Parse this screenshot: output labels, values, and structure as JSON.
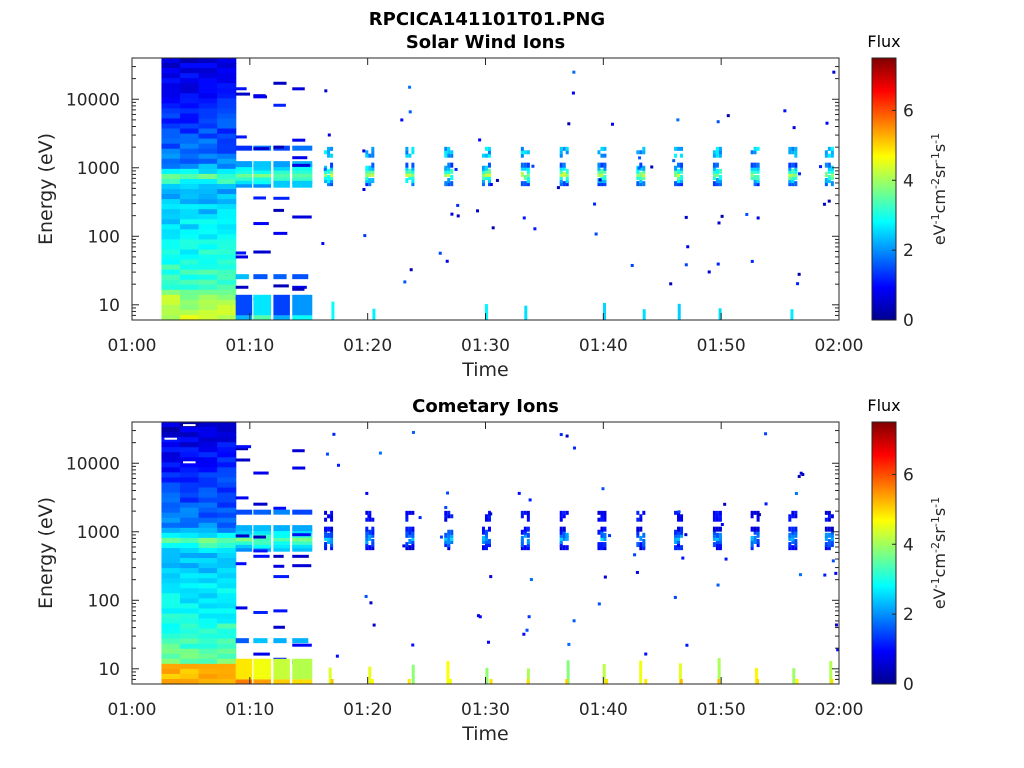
{
  "figure_title": "RPCICA141101T01.PNG",
  "chart_data": [
    {
      "type": "heatmap",
      "title": "Solar Wind Ions",
      "xlabel": "Time",
      "ylabel": "Energy (eV)",
      "x_range": [
        "01:00",
        "02:00"
      ],
      "x_ticks": [
        "01:00",
        "01:10",
        "01:20",
        "01:30",
        "01:40",
        "01:50",
        "02:00"
      ],
      "y_scale": "log",
      "y_range": [
        6,
        40000
      ],
      "y_ticks": [
        10,
        100,
        1000,
        10000
      ],
      "y_tick_labels": [
        "10",
        "100",
        "1000",
        "10000"
      ],
      "colorbar": {
        "label": "Flux",
        "units_base": "eV",
        "units_parts": [
          {
            "t": "eV"
          },
          {
            "t": "-1",
            "sup": true
          },
          {
            "t": "cm"
          },
          {
            "t": "-2",
            "sup": true
          },
          {
            "t": "sr"
          },
          {
            "t": "-1",
            "sup": true
          },
          {
            "t": "s"
          },
          {
            "t": "-1",
            "sup": true
          }
        ],
        "range": [
          0,
          7.5
        ],
        "ticks": [
          0,
          2,
          4,
          6
        ],
        "tick_labels": [
          "0",
          "2",
          "4",
          "6"
        ],
        "colormap": "jet"
      },
      "continuous_block": {
        "start_min": 2.5,
        "end_min": 8.8
      },
      "peak_energy_eV": 800,
      "periodic_bursts_start_min": [
        16.3,
        19.8,
        23.2,
        26.5,
        29.7,
        33.0,
        36.3,
        39.5,
        42.8,
        46.0,
        49.3,
        52.5,
        55.7,
        58.8
      ]
    },
    {
      "type": "heatmap",
      "title": "Cometary Ions",
      "xlabel": "Time",
      "ylabel": "Energy (eV)",
      "x_range": [
        "01:00",
        "02:00"
      ],
      "x_ticks": [
        "01:00",
        "01:10",
        "01:20",
        "01:30",
        "01:40",
        "01:50",
        "02:00"
      ],
      "y_scale": "log",
      "y_range": [
        6,
        40000
      ],
      "y_ticks": [
        10,
        100,
        1000,
        10000
      ],
      "y_tick_labels": [
        "10",
        "100",
        "1000",
        "10000"
      ],
      "colorbar": {
        "label": "Flux",
        "units_base": "eV",
        "units_parts": [
          {
            "t": "eV"
          },
          {
            "t": "-1",
            "sup": true
          },
          {
            "t": "cm"
          },
          {
            "t": "-2",
            "sup": true
          },
          {
            "t": "sr"
          },
          {
            "t": "-1",
            "sup": true
          },
          {
            "t": "s"
          },
          {
            "t": "-1",
            "sup": true
          }
        ],
        "range": [
          0,
          7.5
        ],
        "ticks": [
          0,
          2,
          4,
          6
        ],
        "tick_labels": [
          "0",
          "2",
          "4",
          "6"
        ],
        "colormap": "jet"
      },
      "continuous_block": {
        "start_min": 2.5,
        "end_min": 8.8
      },
      "peak_energy_eV": 800,
      "periodic_bursts_start_min": [
        16.3,
        19.8,
        23.2,
        26.5,
        29.7,
        33.0,
        36.3,
        39.5,
        42.8,
        46.0,
        49.3,
        52.5,
        55.7,
        58.8
      ]
    }
  ]
}
